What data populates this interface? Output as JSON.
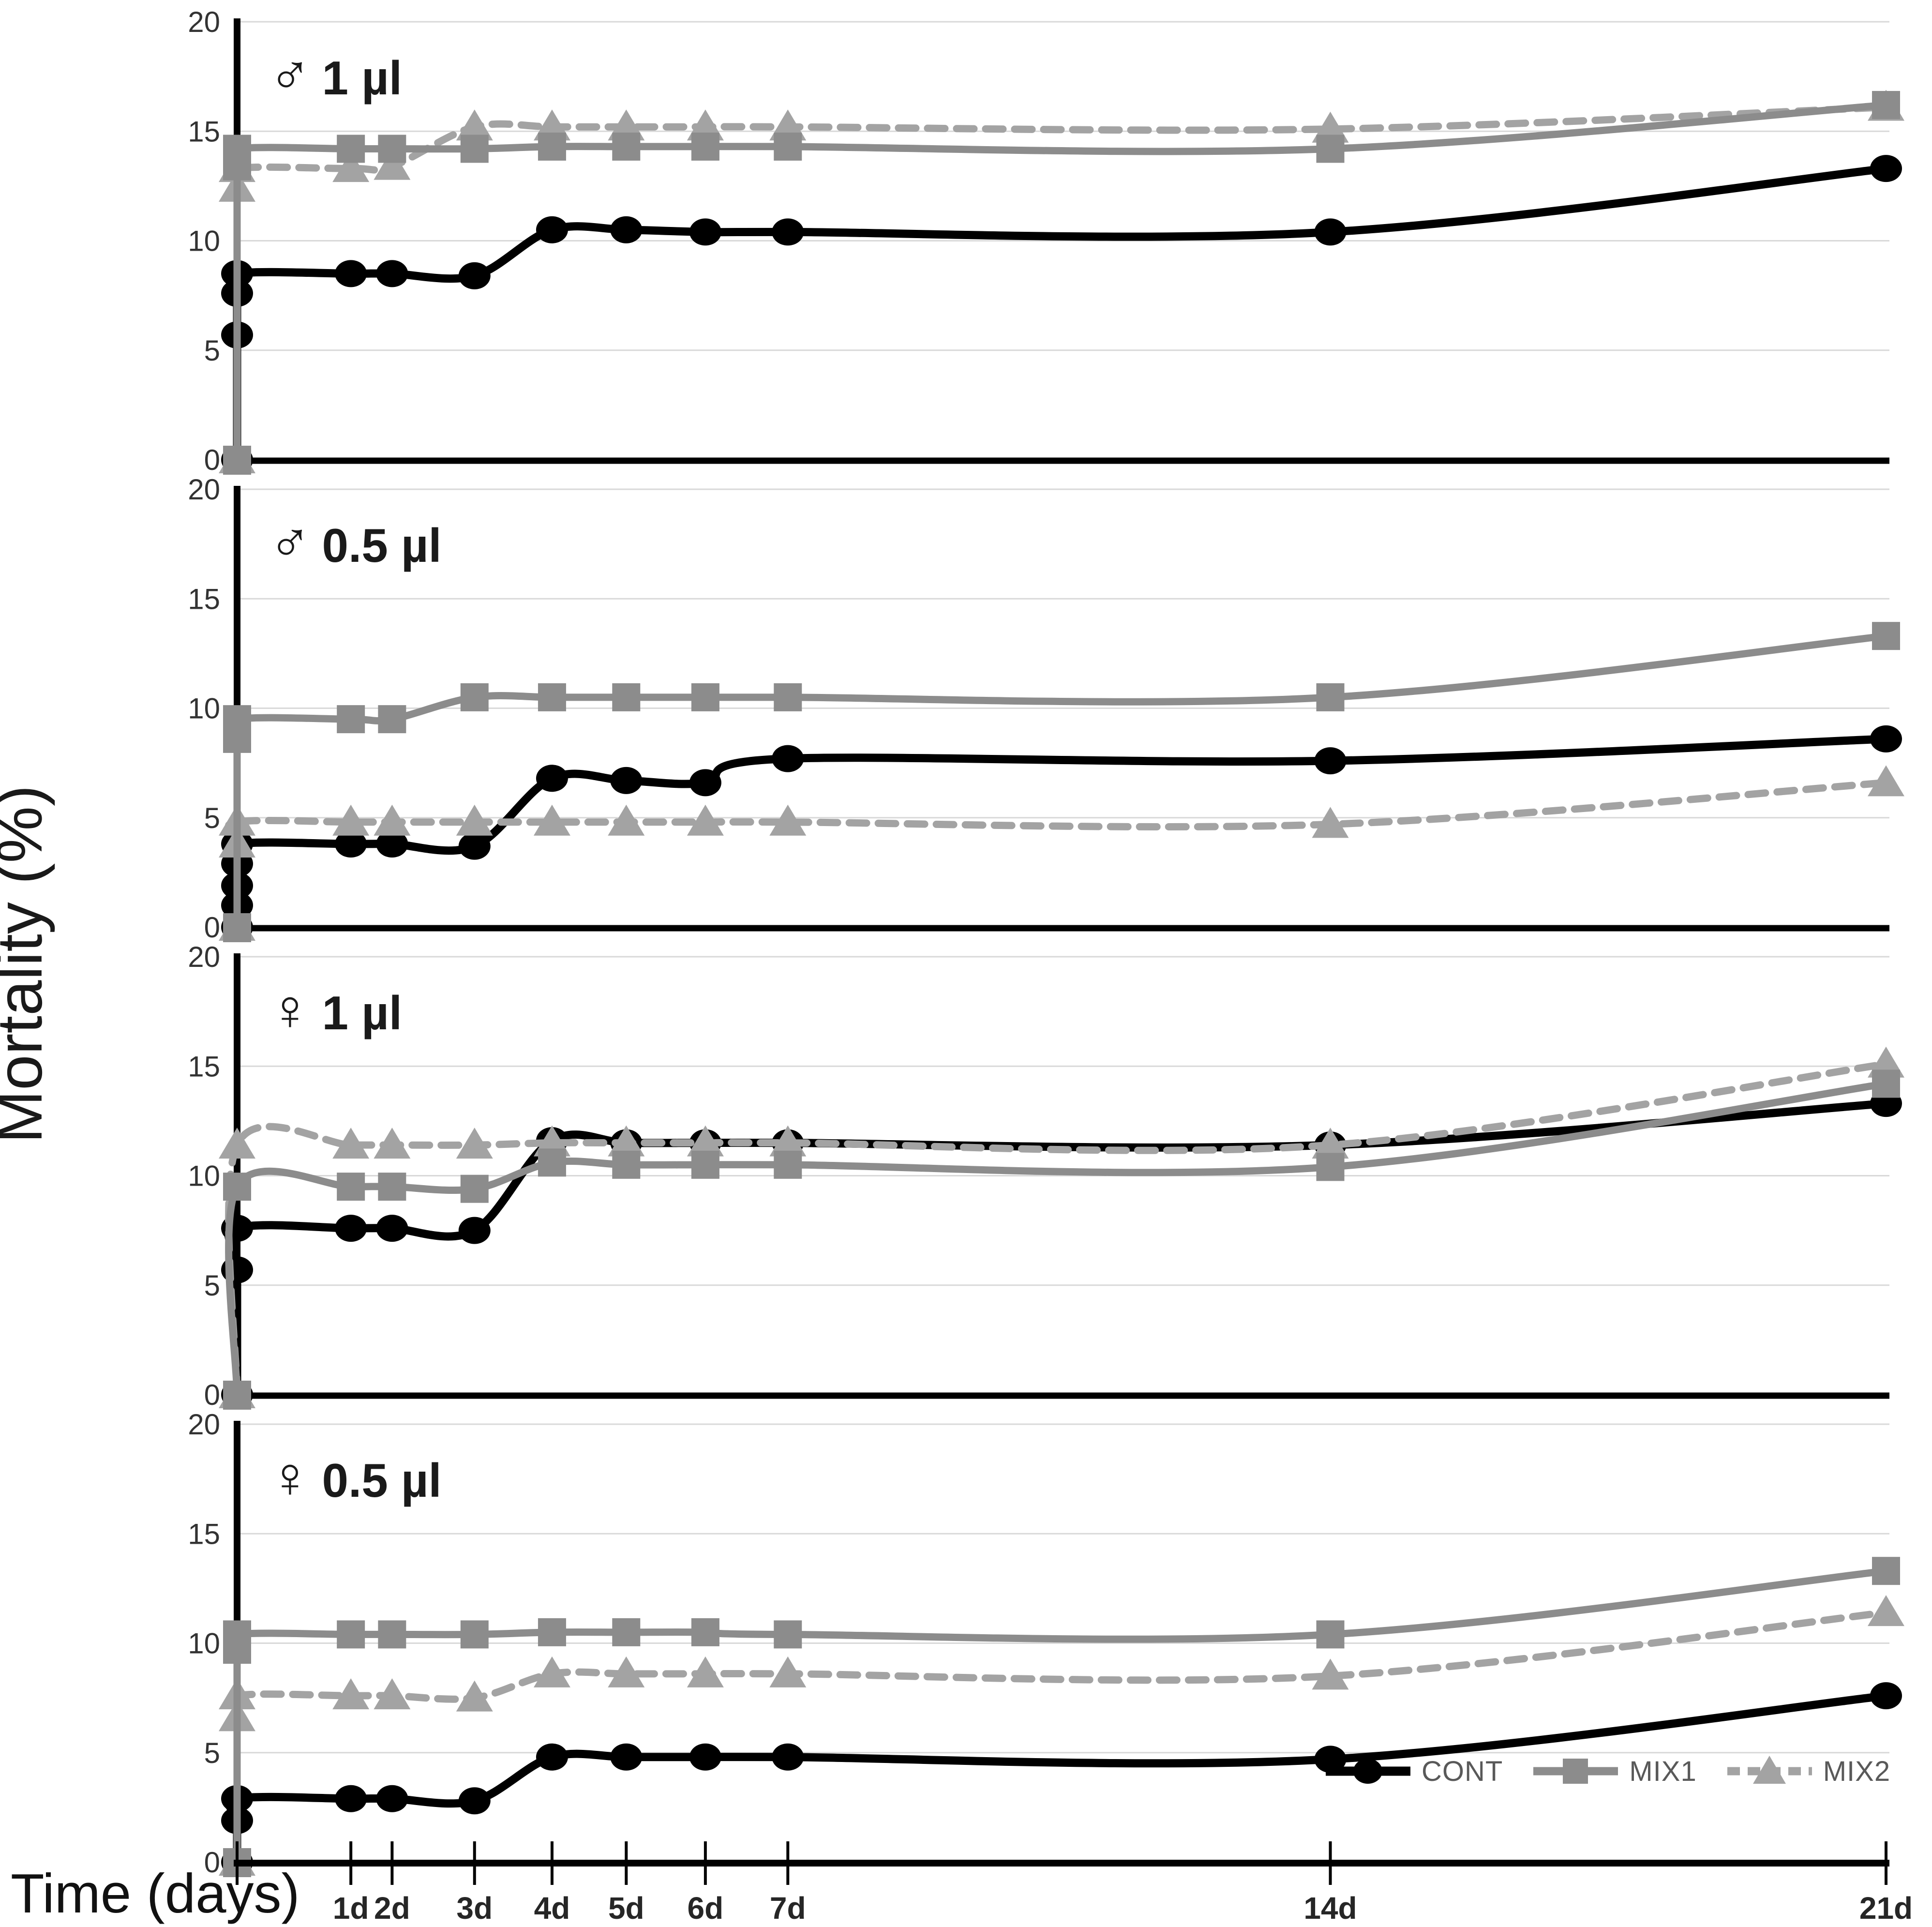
{
  "chart_data": {
    "type": "line",
    "title": "",
    "ylabel": "Mortality (%)",
    "xlabel": "Time (days)",
    "ylim": [
      0,
      20
    ],
    "yticks": [
      0,
      5,
      10,
      15,
      20
    ],
    "grid": "horizontal",
    "legend_position": "bottom-right-inside-last-panel",
    "x_categories": [
      "1d",
      "2d",
      "3d",
      "4d",
      "5d",
      "6d",
      "7d",
      "14d",
      "21d"
    ],
    "x_fractions": {
      "t0": 0,
      "1d": 0.069,
      "2d": 0.094,
      "3d": 0.144,
      "4d": 0.191,
      "5d": 0.236,
      "6d": 0.284,
      "7d": 0.334,
      "14d": 0.663,
      "21d": 1.0
    },
    "time_zero_note": "each series shows a cluster of early measurements plotted at time 0 rising from 0% mortality",
    "panels": [
      {
        "id": "male-1ul",
        "sex_symbol": "♂",
        "dose_label": "1 µl",
        "series": [
          {
            "name": "CONT",
            "t0": [
              0,
              5.7,
              7.6,
              8.5
            ],
            "values": [
              8.5,
              8.5,
              8.4,
              10.5,
              10.5,
              10.4,
              10.4,
              10.4,
              13.3
            ]
          },
          {
            "name": "MIX1",
            "t0": [
              0,
              13.4,
              14.2
            ],
            "values": [
              14.2,
              14.2,
              14.2,
              14.3,
              14.3,
              14.3,
              14.3,
              14.2,
              16.2
            ]
          },
          {
            "name": "MIX2",
            "t0": [
              0,
              12.4,
              13.3
            ],
            "values": [
              13.3,
              13.4,
              15.2,
              15.2,
              15.2,
              15.2,
              15.2,
              15.1,
              16.1
            ]
          }
        ]
      },
      {
        "id": "male-05ul",
        "sex_symbol": "♂",
        "dose_label": "0.5 µl",
        "series": [
          {
            "name": "CONT",
            "t0": [
              0,
              1.0,
              1.9,
              2.9,
              3.8
            ],
            "values": [
              3.8,
              3.8,
              3.7,
              6.8,
              6.7,
              6.6,
              7.7,
              7.6,
              8.6
            ]
          },
          {
            "name": "MIX1",
            "t0": [
              0,
              8.6,
              9.5
            ],
            "values": [
              9.5,
              9.5,
              10.5,
              10.5,
              10.5,
              10.5,
              10.5,
              10.5,
              13.3
            ]
          },
          {
            "name": "MIX2",
            "t0": [
              0,
              3.8,
              4.8
            ],
            "values": [
              4.8,
              4.8,
              4.8,
              4.8,
              4.8,
              4.8,
              4.8,
              4.7,
              6.6
            ]
          }
        ]
      },
      {
        "id": "female-1ul",
        "sex_symbol": "♀",
        "dose_label": "1 µl",
        "series": [
          {
            "name": "CONT",
            "t0": [
              0,
              5.7,
              7.6
            ],
            "values": [
              7.6,
              7.6,
              7.5,
              11.6,
              11.5,
              11.5,
              11.5,
              11.4,
              13.3
            ]
          },
          {
            "name": "MIX1",
            "t0": [
              0,
              9.5
            ],
            "values": [
              9.5,
              9.5,
              9.4,
              10.6,
              10.5,
              10.5,
              10.5,
              10.4,
              14.2
            ]
          },
          {
            "name": "MIX2",
            "t0": [
              0,
              11.4
            ],
            "values": [
              11.4,
              11.4,
              11.4,
              11.5,
              11.5,
              11.5,
              11.5,
              11.4,
              15.1
            ]
          }
        ]
      },
      {
        "id": "female-05ul",
        "sex_symbol": "♀",
        "dose_label": "0.5 µl",
        "series": [
          {
            "name": "CONT",
            "t0": [
              0,
              1.9,
              2.9
            ],
            "values": [
              2.9,
              2.9,
              2.8,
              4.8,
              4.8,
              4.8,
              4.8,
              4.7,
              7.6
            ]
          },
          {
            "name": "MIX1",
            "t0": [
              0,
              9.7,
              10.4
            ],
            "values": [
              10.4,
              10.4,
              10.4,
              10.5,
              10.5,
              10.5,
              10.4,
              10.4,
              13.3
            ]
          },
          {
            "name": "MIX2",
            "t0": [
              0,
              6.6,
              7.6
            ],
            "values": [
              7.6,
              7.6,
              7.5,
              8.6,
              8.6,
              8.6,
              8.6,
              8.5,
              11.4
            ]
          }
        ]
      }
    ],
    "legend": [
      "CONT",
      "MIX1",
      "MIX2"
    ],
    "styles": {
      "CONT": {
        "color": "#000000",
        "marker": "circle",
        "dash": null,
        "width": 17
      },
      "MIX1": {
        "color": "#8c8c8c",
        "marker": "square",
        "dash": null,
        "width": 15
      },
      "MIX2": {
        "color": "#a3a3a3",
        "marker": "triangle",
        "dash": "36 24",
        "width": 15
      }
    },
    "colors": {
      "gridline": "#d9d9d9",
      "axis": "#000000",
      "tick_text": "#333333",
      "legend_text": "#595959"
    }
  }
}
